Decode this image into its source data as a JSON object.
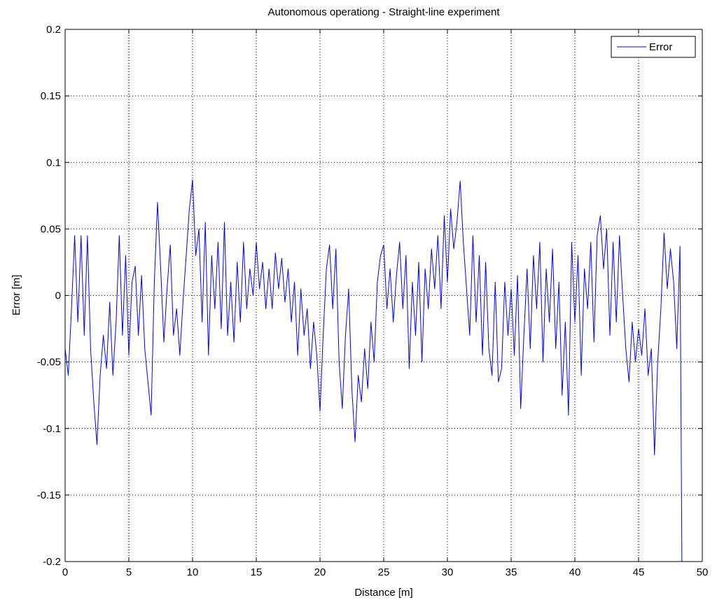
{
  "chart_data": {
    "type": "line",
    "title": "Autonomous operationg - Straight-line experiment",
    "x_label": "Distance [m]",
    "y_label": "Error [m]",
    "x": [
      0,
      0.25,
      0.5,
      0.75,
      1,
      1.25,
      1.5,
      1.75,
      2,
      2.25,
      2.5,
      2.75,
      3,
      3.25,
      3.5,
      3.75,
      4,
      4.25,
      4.5,
      4.75,
      5,
      5.25,
      5.5,
      5.75,
      6,
      6.25,
      6.5,
      6.75,
      7,
      7.25,
      7.5,
      7.75,
      8,
      8.25,
      8.5,
      8.75,
      9,
      9.25,
      9.5,
      9.75,
      10,
      10.25,
      10.5,
      10.75,
      11,
      11.25,
      11.5,
      11.75,
      12,
      12.25,
      12.5,
      12.75,
      13,
      13.25,
      13.5,
      13.75,
      14,
      14.25,
      14.5,
      14.75,
      15,
      15.25,
      15.5,
      15.75,
      16,
      16.25,
      16.5,
      16.75,
      17,
      17.25,
      17.5,
      17.75,
      18,
      18.25,
      18.5,
      18.75,
      19,
      19.25,
      19.5,
      19.75,
      20,
      20.25,
      20.5,
      20.75,
      21,
      21.25,
      21.5,
      21.75,
      22,
      22.25,
      22.5,
      22.75,
      23,
      23.25,
      23.5,
      23.75,
      24,
      24.25,
      24.5,
      24.75,
      25,
      25.25,
      25.5,
      25.75,
      26,
      26.25,
      26.5,
      26.75,
      27,
      27.25,
      27.5,
      27.75,
      28,
      28.25,
      28.5,
      28.75,
      29,
      29.25,
      29.5,
      29.75,
      30,
      30.25,
      30.5,
      30.75,
      31,
      31.25,
      31.5,
      31.75,
      32,
      32.25,
      32.5,
      32.75,
      33,
      33.25,
      33.5,
      33.75,
      34,
      34.25,
      34.5,
      34.75,
      35,
      35.25,
      35.5,
      35.75,
      36,
      36.25,
      36.5,
      36.75,
      37,
      37.25,
      37.5,
      37.75,
      38,
      38.25,
      38.5,
      38.75,
      39,
      39.25,
      39.5,
      39.75,
      40,
      40.25,
      40.5,
      40.75,
      41,
      41.25,
      41.5,
      41.75,
      42,
      42.25,
      42.5,
      42.75,
      43,
      43.25,
      43.5,
      43.75,
      44,
      44.25,
      44.5,
      44.75,
      45,
      45.25,
      45.5,
      45.75,
      46,
      46.25,
      46.5,
      46.75,
      47,
      47.25,
      47.5,
      47.75,
      48,
      48.25,
      48.4
    ],
    "series": [
      {
        "name": "Error",
        "color": "#0000ff",
        "values": [
          -0.04,
          -0.06,
          -0.01,
          0.045,
          -0.02,
          0.045,
          -0.03,
          0.045,
          -0.04,
          -0.08,
          -0.112,
          -0.06,
          -0.03,
          -0.055,
          -0.005,
          -0.06,
          -0.02,
          0.045,
          -0.03,
          0.03,
          -0.045,
          0.01,
          0.022,
          -0.03,
          0.015,
          -0.04,
          -0.065,
          -0.09,
          0.01,
          0.07,
          0.02,
          -0.035,
          0.005,
          0.038,
          -0.03,
          -0.01,
          -0.045,
          -0.005,
          0.03,
          0.065,
          0.087,
          0.03,
          0.05,
          -0.02,
          0.055,
          -0.045,
          0.03,
          -0.01,
          0.04,
          -0.025,
          0.055,
          -0.03,
          0.01,
          -0.035,
          0.025,
          -0.02,
          0.04,
          -0.01,
          0.02,
          0,
          0.04,
          0.005,
          0.025,
          -0.01,
          0.02,
          -0.01,
          0.032,
          0.005,
          0.028,
          -0.005,
          0.02,
          -0.02,
          0.01,
          -0.045,
          0.005,
          -0.03,
          -0.01,
          -0.055,
          -0.02,
          -0.045,
          -0.087,
          -0.03,
          0.02,
          0.038,
          -0.01,
          0.035,
          -0.05,
          -0.085,
          -0.03,
          0.005,
          -0.07,
          -0.11,
          -0.06,
          -0.08,
          -0.04,
          -0.07,
          -0.02,
          -0.05,
          0.01,
          0.03,
          0.038,
          -0.01,
          0.02,
          -0.02,
          0.015,
          0.04,
          -0.01,
          0.03,
          -0.055,
          0.01,
          -0.03,
          0.025,
          -0.05,
          0.02,
          -0.01,
          0.035,
          0.005,
          0.045,
          -0.01,
          0.06,
          0.01,
          0.065,
          0.035,
          0.055,
          0.086,
          0.04,
          0.005,
          -0.03,
          0.045,
          -0.02,
          0.03,
          -0.045,
          0.025,
          -0.04,
          -0.06,
          0.01,
          -0.065,
          -0.055,
          0.01,
          -0.03,
          0.005,
          -0.045,
          0.015,
          -0.085,
          -0.03,
          0.02,
          -0.04,
          0.03,
          -0.01,
          0.04,
          -0.05,
          0.02,
          -0.02,
          0.035,
          -0.04,
          0.01,
          -0.075,
          -0.02,
          -0.09,
          0.04,
          -0.02,
          0.03,
          -0.06,
          0.02,
          -0.01,
          0.04,
          -0.035,
          0.045,
          0.06,
          0.02,
          0.05,
          -0.03,
          0.04,
          -0.02,
          0.045,
          0,
          -0.04,
          -0.065,
          -0.02,
          -0.05,
          -0.025,
          -0.045,
          -0.01,
          -0.06,
          -0.04,
          -0.12,
          -0.05,
          -0.01,
          0.047,
          0.005,
          0.035,
          0.01,
          -0.04,
          0.037,
          -0.2
        ]
      }
    ],
    "xlim": [
      0,
      50
    ],
    "xticks": [
      0,
      5,
      10,
      15,
      20,
      25,
      30,
      35,
      40,
      45,
      50
    ],
    "ylim": [
      -0.2,
      0.2
    ],
    "yticks": [
      -0.2,
      -0.15,
      -0.1,
      -0.05,
      0,
      0.05,
      0.1,
      0.15,
      0.2
    ],
    "grid": true,
    "legend": "northeast"
  }
}
